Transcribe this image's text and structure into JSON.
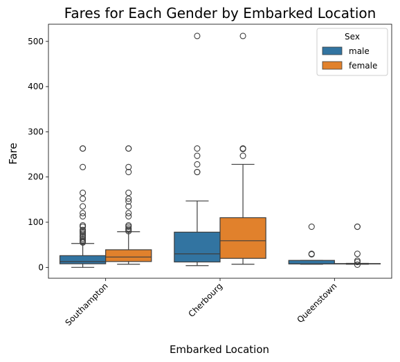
{
  "chart_data": {
    "type": "box",
    "title": "Fares for Each Gender by Embarked Location",
    "xlabel": "Embarked Location",
    "ylabel": "Fare",
    "ylim": [
      -24,
      538
    ],
    "yticks": [
      0,
      100,
      200,
      300,
      400,
      500
    ],
    "categories": [
      "Southampton",
      "Cherbourg",
      "Queenstown"
    ],
    "grid": false,
    "legend": {
      "title": "Sex",
      "position": "top-right"
    },
    "series": [
      {
        "name": "male",
        "color": "#3274a1",
        "boxes": [
          {
            "whislo": 0,
            "q1": 8,
            "median": 13,
            "q3": 26,
            "whishi": 53,
            "fliers": [
              55,
              57,
              60,
              63,
              67,
              70,
              74,
              77,
              80,
              83,
              90,
              93,
              113,
              120,
              135,
              152,
              165,
              222,
              263,
              263
            ]
          },
          {
            "whislo": 4,
            "q1": 12,
            "median": 30,
            "q3": 78,
            "whishi": 147,
            "fliers": [
              211,
              211,
              228,
              247,
              263,
              512
            ]
          },
          {
            "whislo": 7,
            "q1": 7.8,
            "median": 7.8,
            "q3": 15.5,
            "whishi": 15.5,
            "fliers": [
              29,
              30,
              90
            ]
          }
        ]
      },
      {
        "name": "female",
        "color": "#e1812c",
        "boxes": [
          {
            "whislo": 7,
            "q1": 13,
            "median": 23,
            "q3": 39,
            "whishi": 79,
            "fliers": [
              80,
              83,
              86,
              90,
              93,
              113,
              120,
              135,
              146,
              152,
              165,
              211,
              222,
              263,
              263
            ]
          },
          {
            "whislo": 7,
            "q1": 20,
            "median": 59,
            "q3": 110,
            "whishi": 228,
            "fliers": [
              247,
              262,
              263,
              263,
              512
            ]
          },
          {
            "whislo": 7,
            "q1": 7.7,
            "median": 7.8,
            "q3": 8.5,
            "whishi": 9,
            "fliers": [
              6,
              12,
              15,
              30,
              90,
              90
            ]
          }
        ]
      }
    ]
  }
}
